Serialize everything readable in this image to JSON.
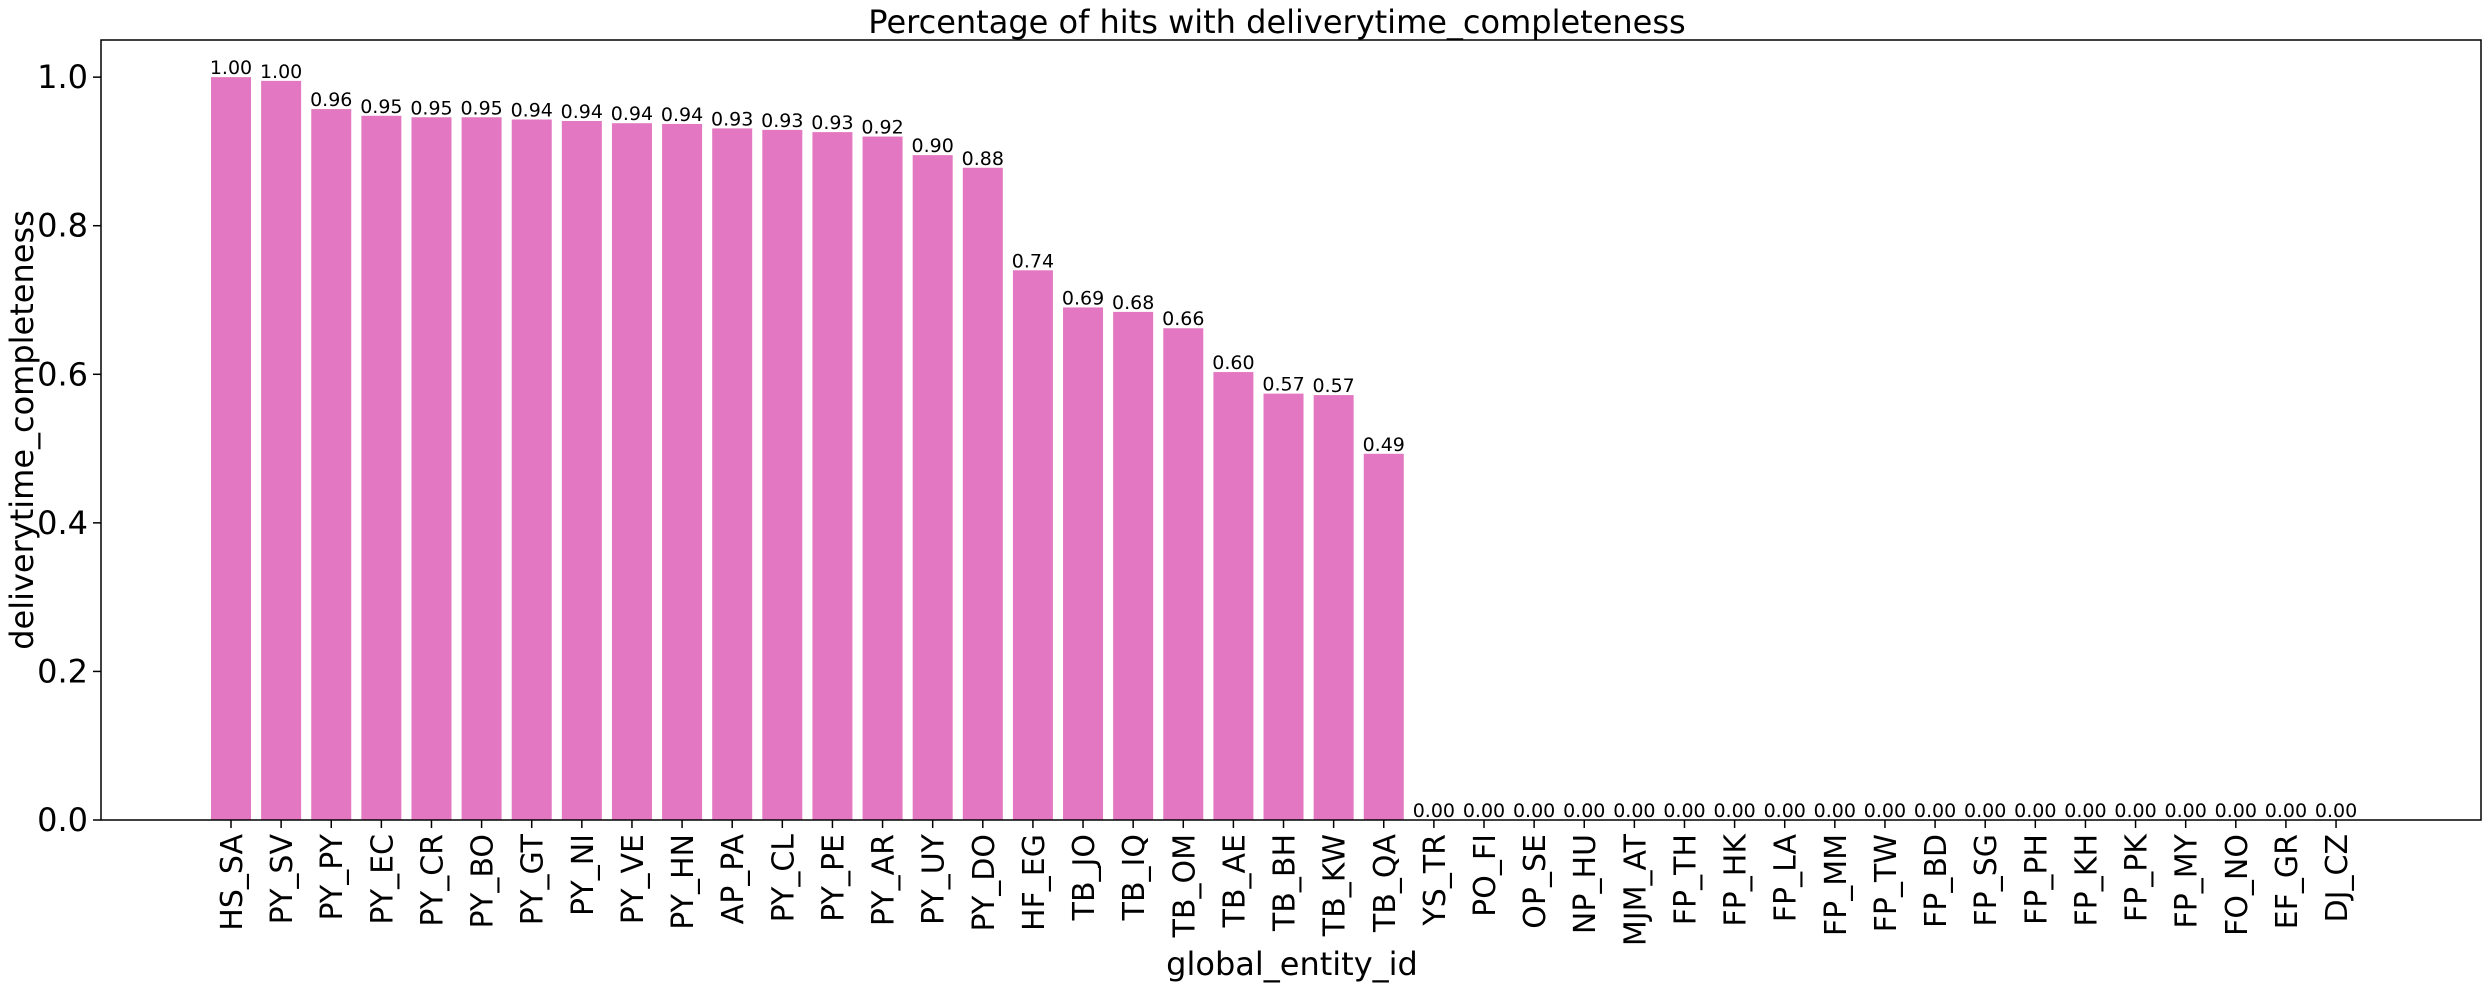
{
  "chart_data": {
    "type": "bar",
    "title": "Percentage of hits with deliverytime_completeness",
    "xlabel": "global_entity_id",
    "ylabel": "deliverytime_completeness",
    "ylim": [
      0,
      1.05
    ],
    "yticks": [
      "0.0",
      "0.2",
      "0.4",
      "0.6",
      "0.8",
      "1.0"
    ],
    "ytick_values": [
      0,
      0.2,
      0.4,
      0.6,
      0.8,
      1.0
    ],
    "grid": false,
    "legend": "none",
    "bar_color": "#e377c2",
    "categories": [
      "HS_SA",
      "PY_SV",
      "PY_PY",
      "PY_EC",
      "PY_CR",
      "PY_BO",
      "PY_GT",
      "PY_NI",
      "PY_VE",
      "PY_HN",
      "AP_PA",
      "PY_CL",
      "PY_PE",
      "PY_AR",
      "PY_UY",
      "PY_DO",
      "HF_EG",
      "TB_JO",
      "TB_IQ",
      "TB_OM",
      "TB_AE",
      "TB_BH",
      "TB_KW",
      "TB_QA",
      "YS_TR",
      "PO_FI",
      "OP_SE",
      "NP_HU",
      "MJM_AT",
      "FP_TH",
      "FP_HK",
      "FP_LA",
      "FP_MM",
      "FP_TW",
      "FP_BD",
      "FP_SG",
      "FP_PH",
      "FP_KH",
      "FP_PK",
      "FP_MY",
      "FO_NO",
      "EF_GR",
      "DJ_CZ"
    ],
    "values": [
      1.0,
      0.995,
      0.957,
      0.948,
      0.946,
      0.946,
      0.943,
      0.941,
      0.938,
      0.937,
      0.931,
      0.929,
      0.926,
      0.92,
      0.895,
      0.878,
      0.74,
      0.69,
      0.684,
      0.662,
      0.603,
      0.574,
      0.572,
      0.493,
      0,
      0,
      0,
      0,
      0,
      0,
      0,
      0,
      0,
      0,
      0,
      0,
      0,
      0,
      0,
      0,
      0,
      0,
      0
    ],
    "data_labels": [
      "1.00",
      "1.00",
      "0.96",
      "0.95",
      "0.95",
      "0.95",
      "0.94",
      "0.94",
      "0.94",
      "0.94",
      "0.93",
      "0.93",
      "0.93",
      "0.92",
      "0.90",
      "0.88",
      "0.74",
      "0.69",
      "0.68",
      "0.66",
      "0.60",
      "0.57",
      "0.57",
      "0.49",
      "0.00",
      "0.00",
      "0.00",
      "0.00",
      "0.00",
      "0.00",
      "0.00",
      "0.00",
      "0.00",
      "0.00",
      "0.00",
      "0.00",
      "0.00",
      "0.00",
      "0.00",
      "0.00",
      "0.00",
      "0.00",
      "0.00"
    ]
  }
}
